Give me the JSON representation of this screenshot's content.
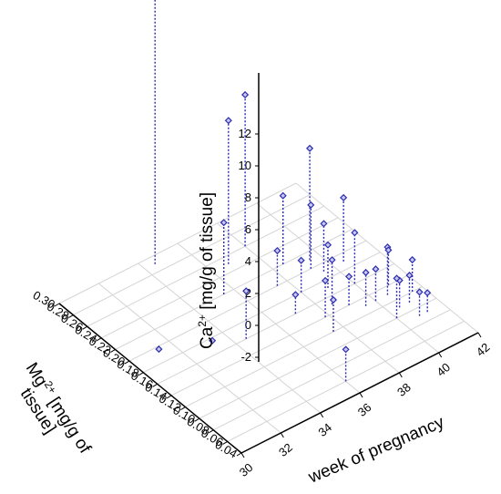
{
  "chart_data": {
    "type": "scatter",
    "projection": "3d",
    "x_axis": {
      "label": "week of pregnancy",
      "range": [
        30,
        42
      ],
      "ticks": [
        "30",
        "32",
        "34",
        "36",
        "38",
        "40",
        "42"
      ]
    },
    "y_axis": {
      "label_prefix": "Mg",
      "label_sup": "2+",
      "label_suffix": " [mg/g of",
      "label_line2": "tissue]",
      "range": [
        0.04,
        0.3
      ],
      "ticks": [
        "0.04",
        "0.06",
        "0.08",
        "0.10",
        "0.12",
        "0.14",
        "0.16",
        "0.18",
        "0.20",
        "0.22",
        "0.24",
        "0.26",
        "0.28",
        "0.30"
      ]
    },
    "z_axis": {
      "label_prefix": "Ca",
      "label_sup": "2+",
      "label_suffix": " [mg/g of tissue]",
      "range": [
        -2,
        12
      ],
      "ticks": [
        "-2",
        "0",
        "2",
        "4",
        "6",
        "8",
        "10",
        "12"
      ]
    },
    "grid": true,
    "marker_color": "#2b2bb0",
    "points": [
      {
        "x": 31.5,
        "y": 0.2,
        "z": -2.2
      },
      {
        "x": 34.5,
        "y": 0.29,
        "z": 16.0
      },
      {
        "x": 36.8,
        "y": 0.25,
        "z": 7.0
      },
      {
        "x": 38.0,
        "y": 0.26,
        "z": 7.5
      },
      {
        "x": 39.5,
        "y": 0.21,
        "z": 5.0
      },
      {
        "x": 35.5,
        "y": 0.22,
        "z": 2.5
      },
      {
        "x": 33.5,
        "y": 0.18,
        "z": -2.2
      },
      {
        "x": 34.5,
        "y": 0.16,
        "z": 1.0
      },
      {
        "x": 38.5,
        "y": 0.22,
        "z": 2.3
      },
      {
        "x": 37.5,
        "y": 0.2,
        "z": 0.2
      },
      {
        "x": 38.0,
        "y": 0.18,
        "z": 0.0
      },
      {
        "x": 39.5,
        "y": 0.19,
        "z": 1.0
      },
      {
        "x": 39.0,
        "y": 0.17,
        "z": 0.7
      },
      {
        "x": 39.2,
        "y": 0.2,
        "z": 2.0
      },
      {
        "x": 40.5,
        "y": 0.19,
        "z": 2.0
      },
      {
        "x": 40.0,
        "y": 0.16,
        "z": 1.2
      },
      {
        "x": 40.6,
        "y": 0.13,
        "z": 1.0
      },
      {
        "x": 39.0,
        "y": 0.14,
        "z": -0.2
      },
      {
        "x": 39.5,
        "y": 0.13,
        "z": 0.1
      },
      {
        "x": 40.0,
        "y": 0.13,
        "z": 0.0
      },
      {
        "x": 41.0,
        "y": 0.14,
        "z": 0.2
      },
      {
        "x": 41.5,
        "y": 0.12,
        "z": 0.0
      },
      {
        "x": 40.5,
        "y": 0.11,
        "z": -0.3
      },
      {
        "x": 41.0,
        "y": 0.11,
        "z": -0.3
      },
      {
        "x": 40.8,
        "y": 0.09,
        "z": -0.5
      },
      {
        "x": 41.2,
        "y": 0.09,
        "z": -0.8
      },
      {
        "x": 37.0,
        "y": 0.16,
        "z": -0.8
      },
      {
        "x": 38.5,
        "y": 0.15,
        "z": 0.8
      },
      {
        "x": 37.8,
        "y": 0.14,
        "z": 0.3
      },
      {
        "x": 36.0,
        "y": 0.06,
        "z": 0.0
      },
      {
        "x": 40.0,
        "y": 0.1,
        "z": 0.5
      },
      {
        "x": 37.5,
        "y": 0.12,
        "z": 0.0
      }
    ]
  }
}
